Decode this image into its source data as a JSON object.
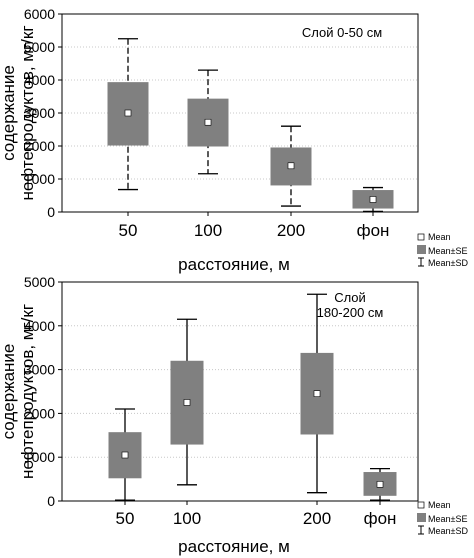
{
  "chart_data": [
    {
      "type": "box",
      "annotation": "Слой 0-50 см",
      "xlabel": "расстояние, м",
      "ylabel": [
        "содержание",
        "нефтепродуктов, мг/кг"
      ],
      "ylim": [
        0,
        6000
      ],
      "yticks": [
        0,
        1000,
        2000,
        3000,
        4000,
        5000,
        6000
      ],
      "grid": true,
      "categories": [
        "50",
        "100",
        "200",
        "фон"
      ],
      "series": [
        {
          "name": "Mean",
          "values": [
            3000,
            2720,
            1400,
            380
          ]
        },
        {
          "name": "Mean±SE",
          "low": [
            2030,
            2000,
            820,
            120
          ],
          "high": [
            3920,
            3420,
            1940,
            650
          ]
        },
        {
          "name": "Mean±SD",
          "low": [
            680,
            1160,
            180,
            20
          ],
          "high": [
            5250,
            4300,
            2600,
            740
          ]
        }
      ]
    },
    {
      "type": "box",
      "annotation": [
        "Слой",
        "180-200 см"
      ],
      "xlabel": "расстояние, м",
      "ylabel": [
        "содержание",
        "нефтепродуктов, мг/кг"
      ],
      "ylim": [
        0,
        5000
      ],
      "yticks": [
        0,
        1000,
        2000,
        3000,
        4000,
        5000
      ],
      "grid": true,
      "categories": [
        "50",
        "100",
        "200",
        "фон"
      ],
      "series": [
        {
          "name": "Mean",
          "values": [
            1050,
            2250,
            2450,
            380
          ]
        },
        {
          "name": "Mean±SE",
          "low": [
            530,
            1300,
            1530,
            130
          ],
          "high": [
            1560,
            3190,
            3370,
            650
          ]
        },
        {
          "name": "Mean±SD",
          "low": [
            20,
            370,
            190,
            20
          ],
          "high": [
            2100,
            4150,
            4720,
            740
          ]
        }
      ]
    }
  ],
  "legend": {
    "items": [
      "Mean",
      "Mean±SE",
      "Mean±SD"
    ]
  },
  "colors": {
    "box": "#808080",
    "mean_marker": "#ffffff",
    "grid": "#c8c8c8"
  }
}
